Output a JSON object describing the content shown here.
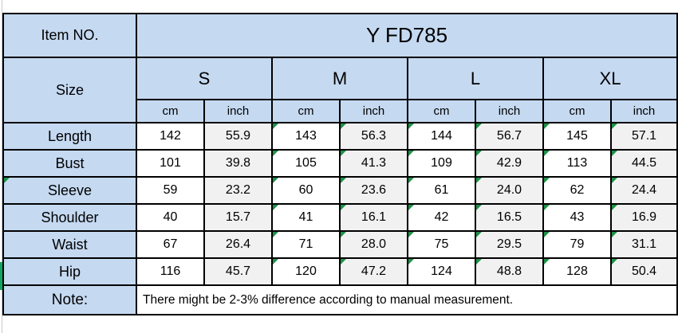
{
  "table": {
    "item_label": "Item NO.",
    "item_value": "Y FD785",
    "size_label": "Size",
    "sizes": [
      "S",
      "M",
      "L",
      "XL"
    ],
    "unit_labels": [
      "cm",
      "inch"
    ],
    "rows": [
      {
        "label": "Length",
        "values": [
          "142",
          "55.9",
          "143",
          "56.3",
          "144",
          "56.7",
          "145",
          "57.1"
        ]
      },
      {
        "label": "Bust",
        "values": [
          "101",
          "39.8",
          "105",
          "41.3",
          "109",
          "42.9",
          "113",
          "44.5"
        ]
      },
      {
        "label": "Sleeve",
        "values": [
          "59",
          "23.2",
          "60",
          "23.6",
          "61",
          "24.0",
          "62",
          "24.4"
        ]
      },
      {
        "label": "Shoulder",
        "values": [
          "40",
          "15.7",
          "41",
          "16.1",
          "42",
          "16.5",
          "43",
          "16.9"
        ]
      },
      {
        "label": "Waist",
        "values": [
          "67",
          "26.4",
          "71",
          "28.0",
          "75",
          "29.5",
          "79",
          "31.1"
        ]
      },
      {
        "label": "Hip",
        "values": [
          "116",
          "45.7",
          "120",
          "47.2",
          "124",
          "48.8",
          "128",
          "50.4"
        ]
      }
    ],
    "note_label": "Note:",
    "note_text": "There might be 2-3% difference according to manual measurement."
  },
  "indicators": {
    "triangle_value_columns": [
      2,
      3,
      4,
      5,
      6,
      7
    ],
    "label_triangle_rows": [
      "Sleeve"
    ],
    "hip_left_edge_strip": true
  },
  "colors": {
    "header_fill": "#C5D9F1",
    "inch_fill": "#F1F1F1",
    "cm_fill": "#FFFFFF",
    "border": "#000000",
    "text": "#000000",
    "error_triangle_green": "#1E9148",
    "left_strip_green": "#10A562",
    "gridline": "#C9C9C9"
  },
  "chart_data": {
    "type": "table",
    "columns": [
      "Item",
      "S cm",
      "S inch",
      "M cm",
      "M inch",
      "L cm",
      "L inch",
      "XL cm",
      "XL inch"
    ],
    "rows": [
      [
        "Length",
        142,
        55.9,
        143,
        56.3,
        144,
        56.7,
        145,
        57.1
      ],
      [
        "Bust",
        101,
        39.8,
        105,
        41.3,
        109,
        42.9,
        113,
        44.5
      ],
      [
        "Sleeve",
        59,
        23.2,
        60,
        23.6,
        61,
        24.0,
        62,
        24.4
      ],
      [
        "Shoulder",
        40,
        15.7,
        41,
        16.1,
        42,
        16.5,
        43,
        16.9
      ],
      [
        "Waist",
        67,
        26.4,
        71,
        28.0,
        75,
        29.5,
        79,
        31.1
      ],
      [
        "Hip",
        116,
        45.7,
        120,
        47.2,
        124,
        48.8,
        128,
        50.4
      ]
    ],
    "item_no": "Y FD785",
    "note": "There might be 2-3% difference according to manual measurement."
  }
}
